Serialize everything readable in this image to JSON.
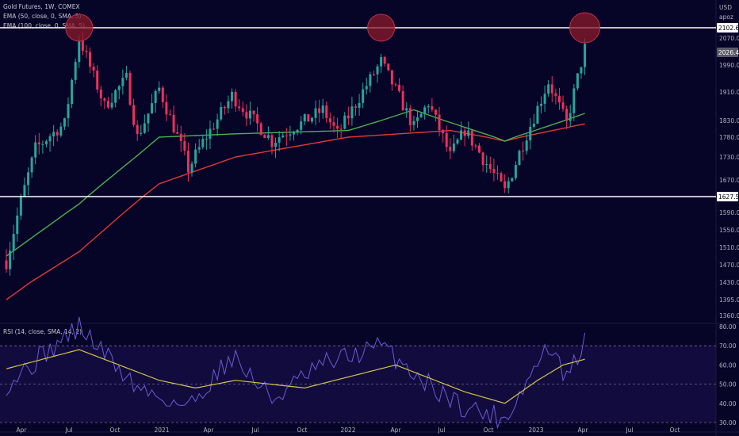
{
  "legend": {
    "title": "Gold Futures, 1W, COMEX",
    "ema50": "EMA (50, close, 0, SMA, 5)",
    "ema100": "EMA (100, close, 0, SMA, 5)",
    "rsi": "RSI (14, close, SMA, 14, 2)"
  },
  "price_axis": {
    "currency": "USD",
    "sub": "apoz",
    "ticks": [
      "2070.0",
      "1990.0",
      "1910.0",
      "1830.0",
      "1780.0",
      "1730.0",
      "1670.0",
      "1590.0",
      "1550.0",
      "1510.0",
      "1470.0",
      "1430.0",
      "1395.0",
      "1360.0"
    ],
    "badges": [
      {
        "label": "2102.6",
        "value": 2102.6
      },
      {
        "label": "2026.4",
        "value": 2026.4
      },
      {
        "label": "1627.5",
        "value": 1627.5
      }
    ]
  },
  "rsi_axis": {
    "ticks": [
      "80.00",
      "70.00",
      "60.00",
      "50.00",
      "40.00",
      "30.00"
    ],
    "tick_values": [
      80,
      70,
      60,
      50,
      40,
      30
    ],
    "bands": [
      70,
      50,
      30
    ]
  },
  "time_axis": {
    "labels": [
      "Apr",
      "Jul",
      "Oct",
      "2021",
      "Apr",
      "Jul",
      "Oct",
      "2022",
      "Apr",
      "Jul",
      "Oct",
      "2023",
      "Apr",
      "Jul",
      "Oct"
    ]
  },
  "colors": {
    "background": "#060427",
    "up": "#26a69a",
    "down": "#ef2f5c",
    "ema50": "#4caf50",
    "ema100": "#e53935",
    "rsi_line": "#6b5bd6",
    "rsi_ma": "#d4c34a",
    "level_line": "#ffffff",
    "circle_fill": "#8b1a2b",
    "circle_stroke": "#c0304a"
  },
  "chart_data": {
    "type": "candlestick",
    "levels": [
      2102.6,
      1627.5
    ],
    "current_price": 2026.4,
    "highlighted_highs": [
      "2020-08-07",
      "2022-03-11",
      "2023-04-07"
    ],
    "anchors": [
      {
        "date": "2020-03-20",
        "price": 1480
      },
      {
        "date": "2020-05-15",
        "price": 1750
      },
      {
        "date": "2020-07-10",
        "price": 1820
      },
      {
        "date": "2020-08-07",
        "price": 2070
      },
      {
        "date": "2020-09-25",
        "price": 1870
      },
      {
        "date": "2020-11-06",
        "price": 1950
      },
      {
        "date": "2020-11-27",
        "price": 1780
      },
      {
        "date": "2021-01-08",
        "price": 1920
      },
      {
        "date": "2021-03-05",
        "price": 1700
      },
      {
        "date": "2021-05-28",
        "price": 1900
      },
      {
        "date": "2021-08-13",
        "price": 1770
      },
      {
        "date": "2021-11-19",
        "price": 1860
      },
      {
        "date": "2021-12-17",
        "price": 1790
      },
      {
        "date": "2022-03-11",
        "price": 2000
      },
      {
        "date": "2022-05-13",
        "price": 1810
      },
      {
        "date": "2022-06-10",
        "price": 1880
      },
      {
        "date": "2022-07-22",
        "price": 1730
      },
      {
        "date": "2022-08-19",
        "price": 1800
      },
      {
        "date": "2022-11-04",
        "price": 1640
      },
      {
        "date": "2023-01-27",
        "price": 1940
      },
      {
        "date": "2023-03-03",
        "price": 1820
      },
      {
        "date": "2023-04-07",
        "price": 2040
      }
    ],
    "ema50_anchors": [
      {
        "date": "2020-03-20",
        "value": 1490
      },
      {
        "date": "2020-08-07",
        "value": 1610
      },
      {
        "date": "2021-01-08",
        "value": 1780
      },
      {
        "date": "2021-06-04",
        "value": 1790
      },
      {
        "date": "2022-01-07",
        "value": 1800
      },
      {
        "date": "2022-05-13",
        "value": 1860
      },
      {
        "date": "2022-11-04",
        "value": 1770
      },
      {
        "date": "2023-04-07",
        "value": 1850
      }
    ],
    "ema100_anchors": [
      {
        "date": "2020-03-20",
        "value": 1395
      },
      {
        "date": "2020-08-07",
        "value": 1500
      },
      {
        "date": "2021-01-08",
        "value": 1660
      },
      {
        "date": "2021-06-04",
        "value": 1730
      },
      {
        "date": "2022-01-07",
        "value": 1780
      },
      {
        "date": "2022-07-22",
        "value": 1800
      },
      {
        "date": "2022-11-04",
        "value": 1770
      },
      {
        "date": "2023-04-07",
        "value": 1820
      }
    ],
    "rsi_anchors": [
      {
        "date": "2020-03-20",
        "value": 50
      },
      {
        "date": "2020-08-07",
        "value": 80
      },
      {
        "date": "2020-11-27",
        "value": 48
      },
      {
        "date": "2021-03-05",
        "value": 38
      },
      {
        "date": "2021-05-28",
        "value": 65
      },
      {
        "date": "2021-08-13",
        "value": 42
      },
      {
        "date": "2021-11-19",
        "value": 60
      },
      {
        "date": "2022-03-11",
        "value": 70
      },
      {
        "date": "2022-06-10",
        "value": 50
      },
      {
        "date": "2022-08-19",
        "value": 38
      },
      {
        "date": "2022-11-04",
        "value": 32
      },
      {
        "date": "2023-01-27",
        "value": 70
      },
      {
        "date": "2023-03-03",
        "value": 52
      },
      {
        "date": "2023-04-07",
        "value": 72
      }
    ],
    "rsi_ma_anchors": [
      {
        "date": "2020-03-20",
        "value": 58
      },
      {
        "date": "2020-08-07",
        "value": 68
      },
      {
        "date": "2021-01-08",
        "value": 52
      },
      {
        "date": "2021-03-19",
        "value": 48
      },
      {
        "date": "2021-06-04",
        "value": 52
      },
      {
        "date": "2021-10-15",
        "value": 48
      },
      {
        "date": "2022-04-08",
        "value": 60
      },
      {
        "date": "2022-08-19",
        "value": 46
      },
      {
        "date": "2022-11-04",
        "value": 40
      },
      {
        "date": "2023-01-06",
        "value": 52
      },
      {
        "date": "2023-02-24",
        "value": 60
      },
      {
        "date": "2023-04-07",
        "value": 63
      }
    ]
  }
}
